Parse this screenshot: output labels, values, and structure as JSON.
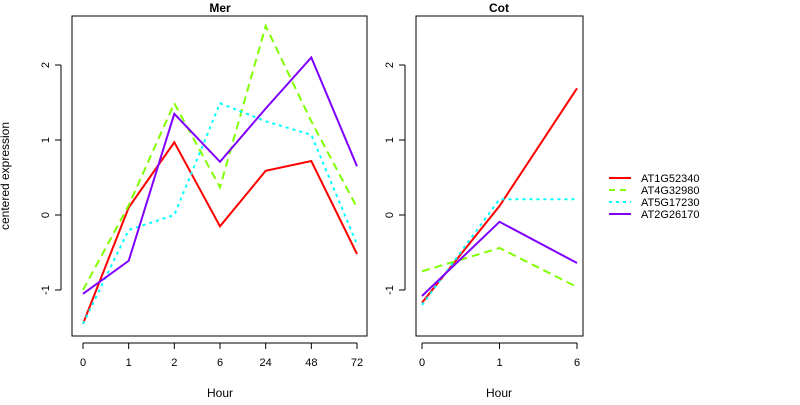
{
  "chart_data": [
    {
      "type": "line",
      "title": "Mer",
      "xlabel": "Hour",
      "ylabel": "centered expression",
      "categories": [
        "0",
        "1",
        "2",
        "6",
        "24",
        "48",
        "72"
      ],
      "yticks": [
        "-1",
        "0",
        "1",
        "2"
      ],
      "ylim": [
        -1.6,
        2.65
      ],
      "series": [
        {
          "name": "AT1G52340",
          "color": "#ff0000",
          "dash": "solid",
          "values": [
            -1.45,
            0.1,
            0.97,
            -0.15,
            0.59,
            0.72,
            -0.52
          ]
        },
        {
          "name": "AT4G32980",
          "color": "#80ff00",
          "dash": "dashed",
          "values": [
            -1.0,
            0.13,
            1.49,
            0.37,
            2.52,
            1.25,
            0.1
          ]
        },
        {
          "name": "AT5G17230",
          "color": "#00ffff",
          "dash": "dotted",
          "values": [
            -1.45,
            -0.2,
            0.0,
            1.49,
            1.25,
            1.07,
            -0.39
          ]
        },
        {
          "name": "AT2G26170",
          "color": "#8000ff",
          "dash": "solid",
          "values": [
            -1.05,
            -0.61,
            1.35,
            0.71,
            1.42,
            2.1,
            0.65
          ]
        }
      ]
    },
    {
      "type": "line",
      "title": "Cot",
      "xlabel": "Hour",
      "ylabel": "",
      "categories": [
        "0",
        "1",
        "6"
      ],
      "yticks": [
        "-1",
        "0",
        "1",
        "2"
      ],
      "ylim": [
        -1.6,
        2.65
      ],
      "series": [
        {
          "name": "AT1G52340",
          "color": "#ff0000",
          "dash": "solid",
          "values": [
            -1.17,
            0.12,
            1.69
          ]
        },
        {
          "name": "AT4G32980",
          "color": "#80ff00",
          "dash": "dashed",
          "values": [
            -0.75,
            -0.44,
            -0.96
          ]
        },
        {
          "name": "AT5G17230",
          "color": "#00ffff",
          "dash": "dotted",
          "values": [
            -1.2,
            0.21,
            0.21
          ]
        },
        {
          "name": "AT2G26170",
          "color": "#8000ff",
          "dash": "solid",
          "values": [
            -1.08,
            -0.09,
            -0.64
          ]
        }
      ]
    }
  ],
  "legend": {
    "placement": "right",
    "entries": [
      {
        "label": "AT1G52340",
        "color": "#ff0000",
        "dash": "solid"
      },
      {
        "label": "AT4G32980",
        "color": "#80ff00",
        "dash": "dashed"
      },
      {
        "label": "AT5G17230",
        "color": "#00ffff",
        "dash": "dotted"
      },
      {
        "label": "AT2G26170",
        "color": "#8000ff",
        "dash": "solid"
      }
    ]
  }
}
